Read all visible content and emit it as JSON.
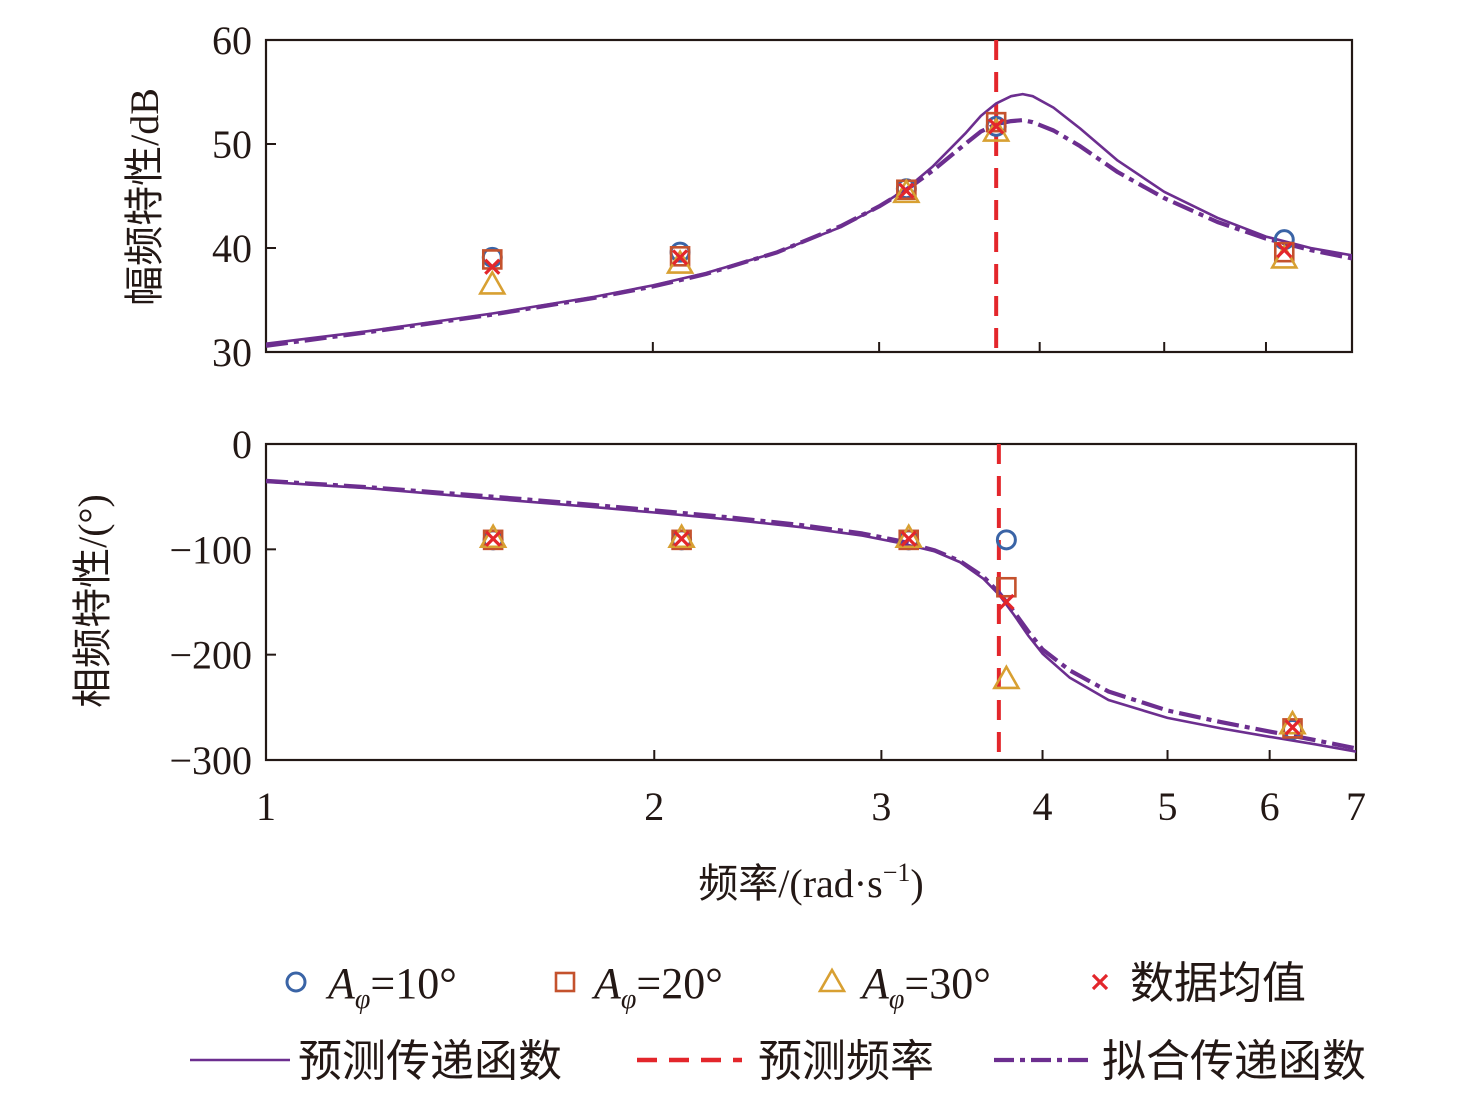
{
  "chart_data": [
    {
      "id": "magnitude",
      "type": "line",
      "xscale": "log",
      "xlim": [
        1,
        7
      ],
      "ylim": [
        30,
        60
      ],
      "yticks": [
        30,
        40,
        50,
        60
      ],
      "ylabel": "幅频特性/dB",
      "xticks_shown": false,
      "predicted_frequency_line": 3.7,
      "series": [
        {
          "name": "预测传递函数",
          "kind": "line",
          "x": [
            1.0,
            1.2,
            1.5,
            1.8,
            2.0,
            2.2,
            2.5,
            2.8,
            3.0,
            3.15,
            3.3,
            3.5,
            3.6,
            3.7,
            3.8,
            3.88,
            3.95,
            4.1,
            4.3,
            4.6,
            5.0,
            5.5,
            6.0,
            6.5,
            7.0
          ],
          "y": [
            30.8,
            32.0,
            33.7,
            35.3,
            36.4,
            37.6,
            39.6,
            42.0,
            44.0,
            45.7,
            47.8,
            51.0,
            52.7,
            53.9,
            54.6,
            54.8,
            54.6,
            53.5,
            51.5,
            48.4,
            45.4,
            42.9,
            41.1,
            40.0,
            39.3
          ]
        },
        {
          "name": "拟合传递函数",
          "kind": "dashdot",
          "x": [
            1.0,
            1.2,
            1.5,
            1.8,
            2.0,
            2.2,
            2.5,
            2.8,
            3.0,
            3.15,
            3.3,
            3.5,
            3.6,
            3.7,
            3.8,
            3.88,
            3.95,
            4.1,
            4.3,
            4.6,
            5.0,
            5.5,
            6.0,
            6.5,
            7.0
          ],
          "y": [
            30.6,
            31.9,
            33.6,
            35.2,
            36.3,
            37.5,
            39.6,
            42.1,
            44.0,
            45.6,
            47.4,
            50.0,
            51.2,
            51.9,
            52.2,
            52.3,
            52.1,
            51.3,
            49.8,
            47.3,
            44.8,
            42.5,
            40.9,
            39.8,
            39.0
          ]
        },
        {
          "name": "Aφ=10°",
          "kind": "marker",
          "marker": "circle",
          "x": [
            1.5,
            2.1,
            3.15,
            3.7,
            6.2
          ],
          "y": [
            39.1,
            39.6,
            45.7,
            51.7,
            40.8
          ]
        },
        {
          "name": "Aφ=20°",
          "kind": "marker",
          "marker": "square",
          "x": [
            1.5,
            2.1,
            3.15,
            3.7,
            6.2
          ],
          "y": [
            38.9,
            39.2,
            45.6,
            52.1,
            39.6
          ]
        },
        {
          "name": "Aφ=30°",
          "kind": "marker",
          "marker": "triangle",
          "x": [
            1.5,
            2.1,
            3.15,
            3.7,
            6.2
          ],
          "y": [
            36.5,
            38.5,
            45.3,
            51.2,
            39.0
          ]
        },
        {
          "name": "数据均值",
          "kind": "marker",
          "marker": "x",
          "x": [
            1.5,
            2.1,
            3.15,
            3.7,
            6.2
          ],
          "y": [
            38.2,
            39.1,
            45.5,
            51.7,
            39.8
          ]
        }
      ]
    },
    {
      "id": "phase",
      "type": "line",
      "xscale": "log",
      "xlim": [
        1,
        7
      ],
      "ylim": [
        -300,
        0
      ],
      "yticks": [
        0,
        -100,
        -200,
        -300
      ],
      "ytick_labels": [
        "0",
        "−100",
        "−200",
        "−300"
      ],
      "ylabel": "相频特性/(°)",
      "xticks": [
        1,
        2,
        3,
        4,
        5,
        6,
        7
      ],
      "xtick_labels": [
        "1",
        "2",
        "3",
        "4",
        "5",
        "6",
        "7"
      ],
      "xlabel_main": "频率/(rad·s",
      "xlabel_sup": "−1",
      "xlabel_close": ")",
      "predicted_frequency_line": 3.7,
      "series": [
        {
          "name": "预测传递函数",
          "kind": "line",
          "x": [
            1.0,
            1.2,
            1.5,
            1.8,
            2.0,
            2.3,
            2.6,
            2.9,
            3.1,
            3.3,
            3.45,
            3.6,
            3.7,
            3.8,
            3.9,
            4.0,
            4.2,
            4.5,
            5.0,
            5.5,
            6.0,
            6.5,
            7.0
          ],
          "y": [
            -36,
            -42,
            -52,
            -60,
            -65,
            -72,
            -79,
            -87,
            -94,
            -102,
            -112,
            -128,
            -143,
            -162,
            -182,
            -199,
            -222,
            -243,
            -260,
            -270,
            -278,
            -285,
            -292
          ]
        },
        {
          "name": "拟合传递函数",
          "kind": "dashdot",
          "x": [
            1.0,
            1.2,
            1.5,
            1.8,
            2.0,
            2.3,
            2.6,
            2.9,
            3.1,
            3.3,
            3.45,
            3.6,
            3.7,
            3.8,
            3.9,
            4.0,
            4.2,
            4.5,
            5.0,
            5.5,
            6.0,
            6.5,
            7.0
          ],
          "y": [
            -35,
            -41,
            -50,
            -58,
            -63,
            -70,
            -77,
            -85,
            -92,
            -101,
            -111,
            -126,
            -141,
            -159,
            -178,
            -195,
            -215,
            -235,
            -253,
            -264,
            -273,
            -281,
            -289
          ]
        },
        {
          "name": "Aφ=10°",
          "kind": "marker",
          "marker": "circle",
          "x": [
            1.5,
            2.1,
            3.15,
            3.75,
            6.25
          ],
          "y": [
            -91,
            -91,
            -91,
            -91,
            -271
          ]
        },
        {
          "name": "Aφ=20°",
          "kind": "marker",
          "marker": "square",
          "x": [
            1.5,
            2.1,
            3.15,
            3.75,
            6.25
          ],
          "y": [
            -91,
            -91,
            -91,
            -136,
            -270
          ]
        },
        {
          "name": "Aφ=30°",
          "kind": "marker",
          "marker": "triangle",
          "x": [
            1.5,
            2.1,
            3.15,
            3.75,
            6.25
          ],
          "y": [
            -89,
            -89,
            -89,
            -223,
            -266
          ]
        },
        {
          "name": "数据均值",
          "kind": "marker",
          "marker": "x",
          "x": [
            1.5,
            2.1,
            3.15,
            3.75,
            6.25
          ],
          "y": [
            -90,
            -90,
            -90,
            -150,
            -269
          ]
        }
      ]
    }
  ],
  "legend": {
    "entries": [
      {
        "symbol": "circle",
        "label_a": "A",
        "label_sub": "φ",
        "label_rest": "=10°",
        "color": "#3a64a6"
      },
      {
        "symbol": "square",
        "label_a": "A",
        "label_sub": "φ",
        "label_rest": "=20°",
        "color": "#c4522d"
      },
      {
        "symbol": "triangle",
        "label_a": "A",
        "label_sub": "φ",
        "label_rest": "=30°",
        "color": "#d8a032"
      },
      {
        "symbol": "x",
        "label_rest": "数据均值",
        "color": "#e3262b"
      },
      {
        "symbol": "line",
        "label_rest": "预测传递函数",
        "color": "#6c2e8f"
      },
      {
        "symbol": "dash",
        "label_rest": "预测频率",
        "color": "#e3262b"
      },
      {
        "symbol": "dashdot",
        "label_rest": "拟合传递函数",
        "color": "#6c2e8f"
      }
    ]
  },
  "colors": {
    "line": "#6c2e8f",
    "predicted_frequency": "#e3262b",
    "circle": "#3a64a6",
    "square": "#c4522d",
    "triangle": "#d8a032",
    "mean": "#e3262b",
    "axis": "#231815"
  }
}
